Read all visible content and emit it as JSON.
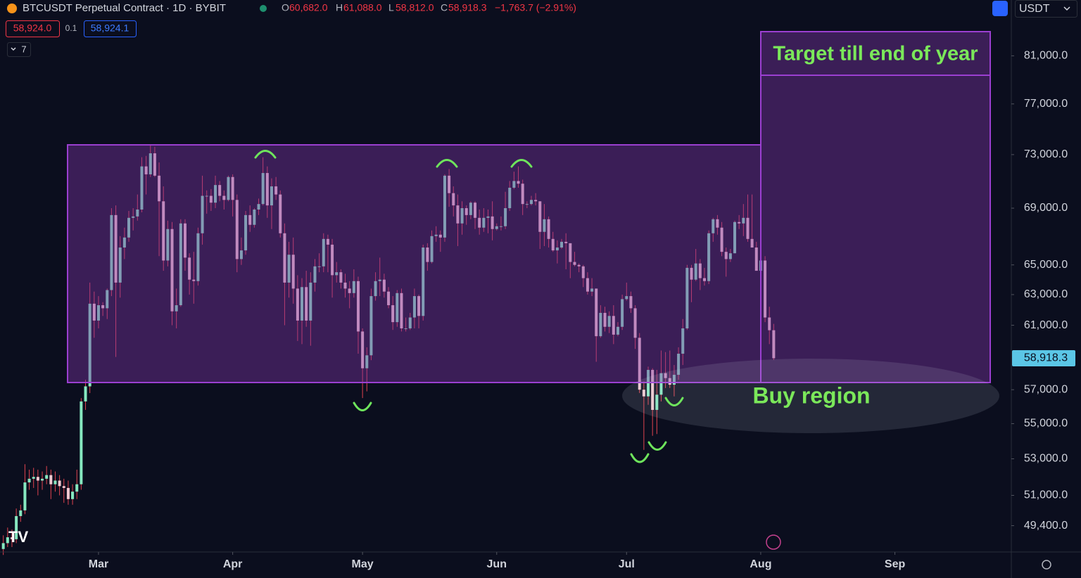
{
  "header": {
    "symbol": "BTCUSDT Perpetual Contract · 1D · BYBIT",
    "ohlc": [
      {
        "key": "O",
        "value": "60,682.0"
      },
      {
        "key": "H",
        "value": "61,088.0"
      },
      {
        "key": "L",
        "value": "58,812.0"
      },
      {
        "key": "C",
        "value": "58,918.3"
      }
    ],
    "change": "−1,763.7 (−2.91%)",
    "sell": "58,924.0",
    "spread": "0.1",
    "buy": "58,924.1",
    "indicators": "7",
    "currency": "USDT"
  },
  "chart_data": {
    "type": "candlestick",
    "log_scale": true,
    "up_color": "#86e8c0",
    "down_color": "#f1c9d0",
    "wick_color": "#e0434f",
    "annotations": {
      "target": "Target till end of year",
      "buy": "Buy region"
    },
    "ylim": [
      48050,
      85900
    ],
    "yticks": [
      {
        "value": 81000,
        "label": "81,000.0"
      },
      {
        "value": 77000,
        "label": "77,000.0"
      },
      {
        "value": 73000,
        "label": "73,000.0"
      },
      {
        "value": 69000,
        "label": "69,000.0"
      },
      {
        "value": 65000,
        "label": "65,000.0"
      },
      {
        "value": 63000,
        "label": "63,000.0"
      },
      {
        "value": 61000,
        "label": "61,000.0"
      },
      {
        "value": 57000,
        "label": "57,000.0"
      },
      {
        "value": 55000,
        "label": "55,000.0"
      },
      {
        "value": 53000,
        "label": "53,000.0"
      },
      {
        "value": 51000,
        "label": "51,000.0"
      },
      {
        "value": 49400,
        "label": "49,400.0"
      }
    ],
    "last_price": {
      "value": 58918.3,
      "label": "58,918.3"
    },
    "xlim": [
      -0.76,
      232.9
    ],
    "xticks": [
      {
        "value": 22,
        "label": "Mar"
      },
      {
        "value": 53,
        "label": "Apr"
      },
      {
        "value": 83,
        "label": "May"
      },
      {
        "value": 114,
        "label": "Jun"
      },
      {
        "value": 144,
        "label": "Jul"
      },
      {
        "value": 175,
        "label": "Aug"
      },
      {
        "value": 206,
        "label": "Sep"
      }
    ],
    "open": [
      48200,
      48500,
      48800,
      48700,
      49900,
      50200,
      51700,
      51900,
      52000,
      51800,
      51900,
      52100,
      51600,
      51800,
      51500,
      51400,
      50800,
      51200,
      51600,
      56300,
      57200,
      62400,
      61300,
      62300,
      62100,
      63300,
      68500,
      63800,
      66200,
      66900,
      68300,
      68400,
      68900,
      72100,
      71500,
      73100,
      71400,
      69500,
      65300,
      67500,
      61900,
      62300,
      67900,
      65500,
      64000,
      63900,
      67200,
      69900,
      69900,
      69400,
      70700,
      69900,
      69600,
      71300,
      69600,
      65400,
      66000,
      68500,
      67800,
      68900,
      69300,
      71600,
      69200,
      70600,
      70000,
      67200,
      63800,
      65700,
      63400,
      61300,
      63500,
      61300,
      63800,
      64900,
      64900,
      66800,
      66400,
      64300,
      64500,
      63800,
      63400,
      63100,
      63900,
      60600,
      58300,
      59100,
      62900,
      63900,
      64000,
      63200,
      62300,
      61200,
      63100,
      60800,
      60800,
      61500,
      62900,
      61600,
      66200,
      65200,
      67000,
      67100,
      66900,
      71400,
      70100,
      69200,
      67900,
      69000,
      68500,
      69400,
      68300,
      67600,
      68300,
      68400,
      67500,
      67700,
      67700,
      69000,
      70500,
      71000,
      70800,
      69300,
      69300,
      69600,
      69500,
      67300,
      68200,
      66800,
      66000,
      66200,
      66600,
      66500,
      65200,
      65000,
      64900,
      64100,
      63200,
      63400,
      60300,
      61800,
      60900,
      61600,
      60400,
      60900,
      62700,
      62900,
      62100,
      60200,
      57000,
      56600,
      58200,
      55800,
      56700,
      58000,
      57700,
      57300,
      57900,
      59200,
      60800,
      64800,
      64000,
      65100,
      64100,
      63900,
      67200,
      68200,
      67600,
      65900,
      65400,
      65800,
      68000,
      67900,
      68300,
      66800,
      66200,
      64600,
      65300,
      61500,
      60682
    ],
    "high": [
      48900,
      49300,
      49200,
      50300,
      50500,
      52700,
      52400,
      52500,
      52400,
      52300,
      52600,
      52400,
      52300,
      52100,
      51900,
      51800,
      51600,
      52400,
      56500,
      57600,
      63800,
      63200,
      62900,
      62500,
      63400,
      69000,
      69200,
      67000,
      67600,
      68800,
      69000,
      70000,
      72800,
      72900,
      73800,
      73600,
      72400,
      70600,
      68100,
      68000,
      63400,
      68200,
      68200,
      65800,
      65900,
      67600,
      71400,
      70300,
      70400,
      71400,
      71000,
      70300,
      71400,
      71500,
      70000,
      66900,
      68800,
      69200,
      69000,
      69700,
      72800,
      72100,
      71200,
      71300,
      70300,
      67900,
      66600,
      66900,
      64300,
      64100,
      64600,
      64500,
      65400,
      65800,
      67200,
      67100,
      66800,
      65200,
      64700,
      64400,
      63900,
      64700,
      64200,
      60800,
      59600,
      63400,
      64500,
      65500,
      64400,
      63500,
      62900,
      63300,
      63400,
      61500,
      61800,
      63400,
      63000,
      66400,
      66500,
      67400,
      67700,
      67400,
      71500,
      71900,
      70600,
      70000,
      69500,
      69200,
      69500,
      69500,
      68900,
      69000,
      68900,
      69500,
      67900,
      68400,
      70200,
      71000,
      71700,
      72100,
      71100,
      69500,
      69900,
      70100,
      69500,
      69300,
      68400,
      67300,
      66700,
      66800,
      67200,
      66500,
      65900,
      65100,
      65000,
      64500,
      64100,
      63400,
      62300,
      62200,
      61900,
      62300,
      61200,
      63000,
      63800,
      63200,
      62300,
      60500,
      57500,
      58400,
      58300,
      58200,
      59400,
      59300,
      59400,
      58500,
      59600,
      61400,
      65000,
      65000,
      66100,
      65400,
      64800,
      67400,
      68300,
      68500,
      68000,
      66200,
      66100,
      68100,
      68500,
      69300,
      70000,
      70000,
      66600,
      65600,
      65600,
      62200,
      61088
    ],
    "low": [
      47900,
      48300,
      48300,
      48500,
      49600,
      50000,
      51300,
      51400,
      51000,
      51300,
      51600,
      50800,
      51200,
      51000,
      50600,
      50500,
      50500,
      50800,
      51300,
      55800,
      56800,
      60200,
      60800,
      61600,
      61400,
      62900,
      59000,
      62800,
      65400,
      66600,
      67400,
      68100,
      68700,
      70000,
      71300,
      71300,
      65600,
      64600,
      64900,
      61000,
      60800,
      62200,
      64600,
      63000,
      62400,
      63600,
      66400,
      68600,
      68800,
      69000,
      69500,
      68900,
      69500,
      68400,
      64500,
      65000,
      65700,
      67300,
      67600,
      68500,
      69200,
      68300,
      67500,
      69600,
      66900,
      61000,
      62800,
      62400,
      60000,
      59800,
      60900,
      59700,
      63200,
      64500,
      64500,
      64500,
      62800,
      63800,
      63400,
      62800,
      62100,
      62800,
      59200,
      56500,
      56900,
      58800,
      62600,
      62900,
      62800,
      62100,
      60700,
      60900,
      60600,
      60600,
      60700,
      60800,
      60800,
      61300,
      64600,
      65100,
      66600,
      65900,
      66600,
      69100,
      68400,
      66300,
      67100,
      67800,
      68200,
      67500,
      67100,
      67300,
      67200,
      66700,
      67400,
      67400,
      67500,
      68800,
      70400,
      70500,
      68500,
      69000,
      69200,
      69200,
      66100,
      66300,
      66200,
      65900,
      65100,
      66100,
      64700,
      64100,
      64900,
      64500,
      63500,
      63000,
      62900,
      58700,
      60200,
      60600,
      60500,
      59800,
      60300,
      60700,
      62600,
      61800,
      59500,
      56800,
      53500,
      56100,
      54300,
      54400,
      56300,
      57100,
      57100,
      56600,
      57600,
      58500,
      60700,
      62500,
      63900,
      63300,
      63600,
      63700,
      66600,
      67100,
      65600,
      64200,
      65200,
      65800,
      67500,
      67000,
      66600,
      66200,
      64600,
      62300,
      61200,
      59800,
      58812
    ],
    "close": [
      48500,
      48800,
      48700,
      49900,
      50200,
      51700,
      51900,
      52000,
      51800,
      51900,
      52100,
      51600,
      51800,
      51500,
      51400,
      50800,
      51200,
      51600,
      56300,
      57200,
      62400,
      61300,
      62300,
      62100,
      63300,
      68500,
      63800,
      66200,
      66900,
      68300,
      68400,
      68900,
      72100,
      71500,
      73100,
      71400,
      69500,
      65300,
      67500,
      61900,
      62300,
      67900,
      65500,
      64000,
      63900,
      67200,
      69900,
      69900,
      69400,
      70700,
      69900,
      69600,
      71300,
      69600,
      65400,
      66000,
      68500,
      67800,
      68900,
      69300,
      71600,
      69200,
      70600,
      70000,
      67200,
      63800,
      65700,
      63400,
      61300,
      63500,
      61300,
      63800,
      64900,
      64900,
      66800,
      66400,
      64300,
      64500,
      63800,
      63400,
      63100,
      63900,
      60600,
      58300,
      59100,
      62900,
      63900,
      64000,
      63200,
      62300,
      61200,
      63100,
      60800,
      60800,
      61500,
      62900,
      61600,
      66200,
      65200,
      67000,
      67100,
      66900,
      71400,
      70100,
      69200,
      67900,
      69000,
      68500,
      69400,
      68300,
      67600,
      68300,
      68400,
      67500,
      67700,
      67700,
      69000,
      70500,
      71000,
      70800,
      69300,
      69300,
      69600,
      69500,
      67300,
      68200,
      66800,
      66000,
      66200,
      66600,
      66500,
      65200,
      65000,
      64900,
      64100,
      63200,
      63400,
      60300,
      61800,
      60900,
      61600,
      60400,
      60900,
      62700,
      62900,
      62100,
      60200,
      57000,
      56600,
      58200,
      55800,
      56700,
      58000,
      57700,
      57300,
      57900,
      59200,
      60800,
      64800,
      64000,
      65100,
      64100,
      63900,
      67200,
      68200,
      67600,
      65900,
      65400,
      65800,
      68000,
      67900,
      68300,
      66800,
      66200,
      64600,
      65300,
      61500,
      60682,
      58918.3
    ]
  }
}
